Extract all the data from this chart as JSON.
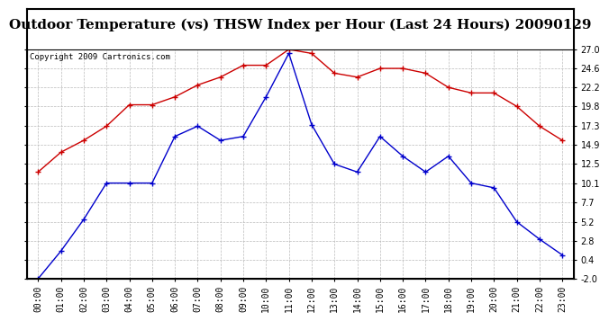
{
  "title": "Outdoor Temperature (vs) THSW Index per Hour (Last 24 Hours) 20090129",
  "copyright_text": "Copyright 2009 Cartronics.com",
  "hours": [
    "00:00",
    "01:00",
    "02:00",
    "03:00",
    "04:00",
    "05:00",
    "06:00",
    "07:00",
    "08:00",
    "09:00",
    "10:00",
    "11:00",
    "12:00",
    "13:00",
    "14:00",
    "15:00",
    "16:00",
    "17:00",
    "18:00",
    "19:00",
    "20:00",
    "21:00",
    "22:00",
    "23:00"
  ],
  "temp_blue": [
    -2.0,
    1.5,
    5.5,
    10.1,
    10.1,
    10.1,
    16.0,
    17.3,
    15.5,
    16.0,
    21.0,
    26.5,
    17.5,
    12.5,
    11.5,
    16.0,
    13.5,
    11.5,
    13.5,
    10.1,
    9.5,
    5.2,
    3.0,
    1.0
  ],
  "thsw_red": [
    11.5,
    14.0,
    15.5,
    17.3,
    20.0,
    20.0,
    21.0,
    22.5,
    23.5,
    25.0,
    25.0,
    27.0,
    26.5,
    24.0,
    23.5,
    24.6,
    24.6,
    24.0,
    22.2,
    21.5,
    21.5,
    19.8,
    17.3,
    15.5
  ],
  "ylim": [
    -2.0,
    27.0
  ],
  "yticks": [
    -2.0,
    0.4,
    2.8,
    5.2,
    7.7,
    10.1,
    12.5,
    14.9,
    17.3,
    19.8,
    22.2,
    24.6,
    27.0
  ],
  "blue_color": "#0000cc",
  "red_color": "#cc0000",
  "bg_color": "#ffffff",
  "grid_color": "#bbbbbb",
  "title_fontsize": 11,
  "copyright_fontsize": 6.5,
  "tick_fontsize": 7
}
